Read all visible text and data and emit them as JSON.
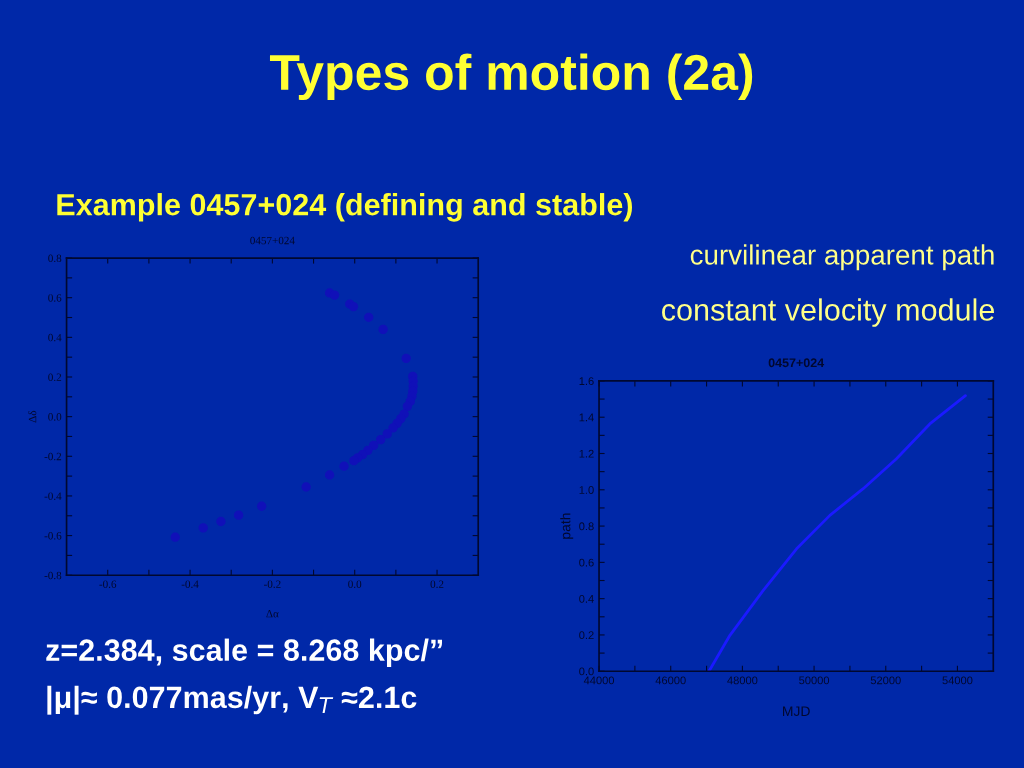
{
  "chart_data": [
    {
      "type": "scatter",
      "title": "0457+024",
      "xlabel": "Δα",
      "ylabel": "Δδ",
      "marker": "circle",
      "grid": false,
      "xlim": [
        -0.7,
        0.3
      ],
      "xticks": [
        -0.6,
        {
          "value": -0.5,
          "label": null
        },
        -0.4,
        {
          "value": -0.3,
          "label": null
        },
        -0.2,
        {
          "value": -0.1,
          "label": null
        },
        {
          "value": 0,
          "label": "0.0"
        },
        {
          "value": 0.1,
          "label": null
        },
        0.2
      ],
      "ylim": [
        -0.8,
        0.8
      ],
      "yticks": [
        -0.8,
        {
          "value": -0.7,
          "label": null
        },
        -0.6,
        {
          "value": -0.5,
          "label": null
        },
        -0.4,
        {
          "value": -0.3,
          "label": null
        },
        -0.2,
        {
          "value": -0.1,
          "label": null
        },
        {
          "value": 0,
          "label": "0.0"
        },
        {
          "value": 0.1,
          "label": null
        },
        0.2,
        {
          "value": 0.3,
          "label": null
        },
        0.4,
        {
          "value": 0.5,
          "label": null
        },
        0.6,
        {
          "value": 0.7,
          "label": null
        },
        0.8
      ],
      "series": [
        {
          "color": "#1010b8",
          "x": [
            -0.061,
            -0.049,
            -0.012,
            -0.003,
            0.034,
            0.069,
            0.125,
            0.141,
            0.142,
            0.142,
            0.141,
            0.139,
            0.135,
            0.128,
            0.12,
            0.112,
            0.103,
            0.093,
            0.079,
            0.063,
            0.046,
            0.032,
            0.019,
            0.007,
            -0.002,
            -0.026,
            -0.061,
            -0.118,
            -0.226,
            -0.282,
            -0.325,
            -0.368,
            -0.436
          ],
          "values": [
            0.624,
            0.613,
            0.568,
            0.555,
            0.501,
            0.44,
            0.294,
            0.203,
            0.178,
            0.153,
            0.128,
            0.103,
            0.077,
            0.052,
            0.013,
            -0.01,
            -0.034,
            -0.057,
            -0.087,
            -0.116,
            -0.145,
            -0.17,
            -0.192,
            -0.208,
            -0.222,
            -0.25,
            -0.294,
            -0.355,
            -0.452,
            -0.497,
            -0.529,
            -0.561,
            -0.608
          ]
        }
      ],
      "annotations": [
        "Types of motion (2a)",
        "Example 0457+024 (defining and stable)",
        "curvilinear apparent path",
        "constant velocity module",
        "z=2.384, scale = 8.268 kpc/”",
        "|μ|≈ 0.077mas/yr, V$_{T}$ ≈2.1c"
      ]
    },
    {
      "type": "line",
      "title": "0457+024",
      "xlabel": "MJD",
      "ylabel": "path",
      "marker": "none",
      "grid": false,
      "xlim": [
        44000,
        55000
      ],
      "xticks": [
        44000,
        {
          "value": 45000,
          "label": null
        },
        46000,
        {
          "value": 47000,
          "label": null
        },
        48000,
        {
          "value": 49000,
          "label": null
        },
        50000,
        {
          "value": 51000,
          "label": null
        },
        52000,
        {
          "value": 53000,
          "label": null
        },
        54000
      ],
      "ylim": [
        0,
        1.6
      ],
      "yticks": [
        {
          "value": 0,
          "label": "0.0"
        },
        {
          "value": 0.1,
          "label": null
        },
        0.2,
        {
          "value": 0.3,
          "label": null
        },
        0.4,
        {
          "value": 0.5,
          "label": null
        },
        0.6,
        {
          "value": 0.7,
          "label": null
        },
        0.8,
        {
          "value": 0.9,
          "label": null
        },
        {
          "value": 1.0,
          "label": "1.0"
        },
        {
          "value": 1.1,
          "label": null
        },
        1.2,
        {
          "value": 1.3,
          "label": null
        },
        1.4,
        {
          "value": 1.5,
          "label": null
        },
        1.6
      ],
      "series": [
        {
          "color": "#1a1aff",
          "line_style": "solid",
          "x": [
            47067,
            47652,
            48582,
            49511,
            50440,
            51370,
            52299,
            53229,
            54223
          ],
          "values": [
            0.0,
            0.198,
            0.446,
            0.675,
            0.859,
            1.006,
            1.171,
            1.363,
            1.519
          ]
        }
      ]
    }
  ]
}
